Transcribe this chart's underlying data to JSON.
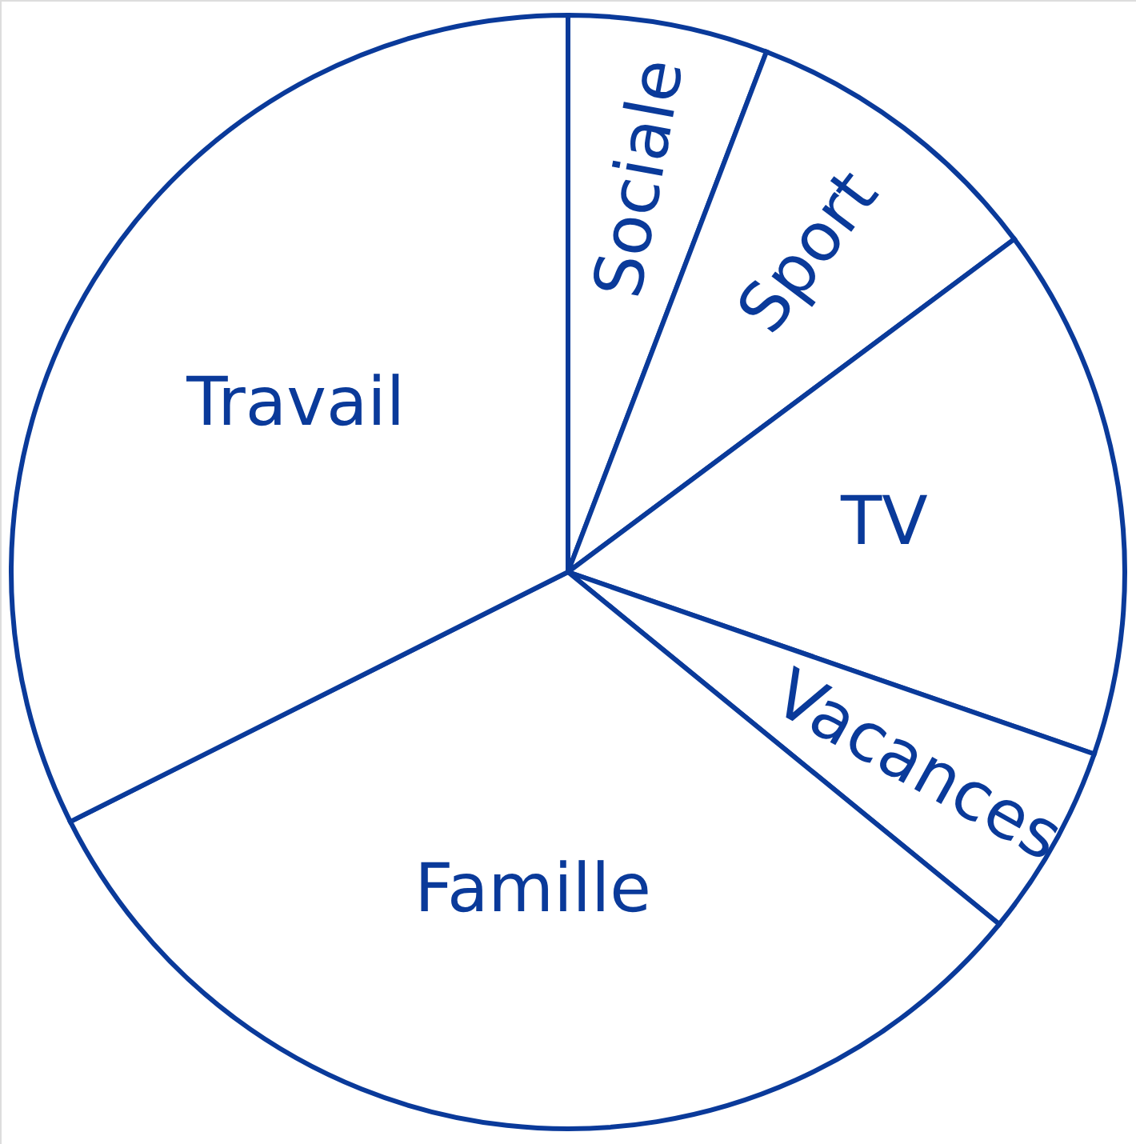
{
  "chart_data": {
    "type": "pie",
    "categories": [
      "Sociale",
      "Sport",
      "TV",
      "Vacances",
      "Famille",
      "Travail"
    ],
    "values": [
      5.8,
      9.0,
      15.5,
      5.6,
      31.7,
      32.4
    ],
    "colors": [
      "#ffffff",
      "#ffffff",
      "#ffffff",
      "#ffffff",
      "#ffffff",
      "#ffffff"
    ]
  }
}
